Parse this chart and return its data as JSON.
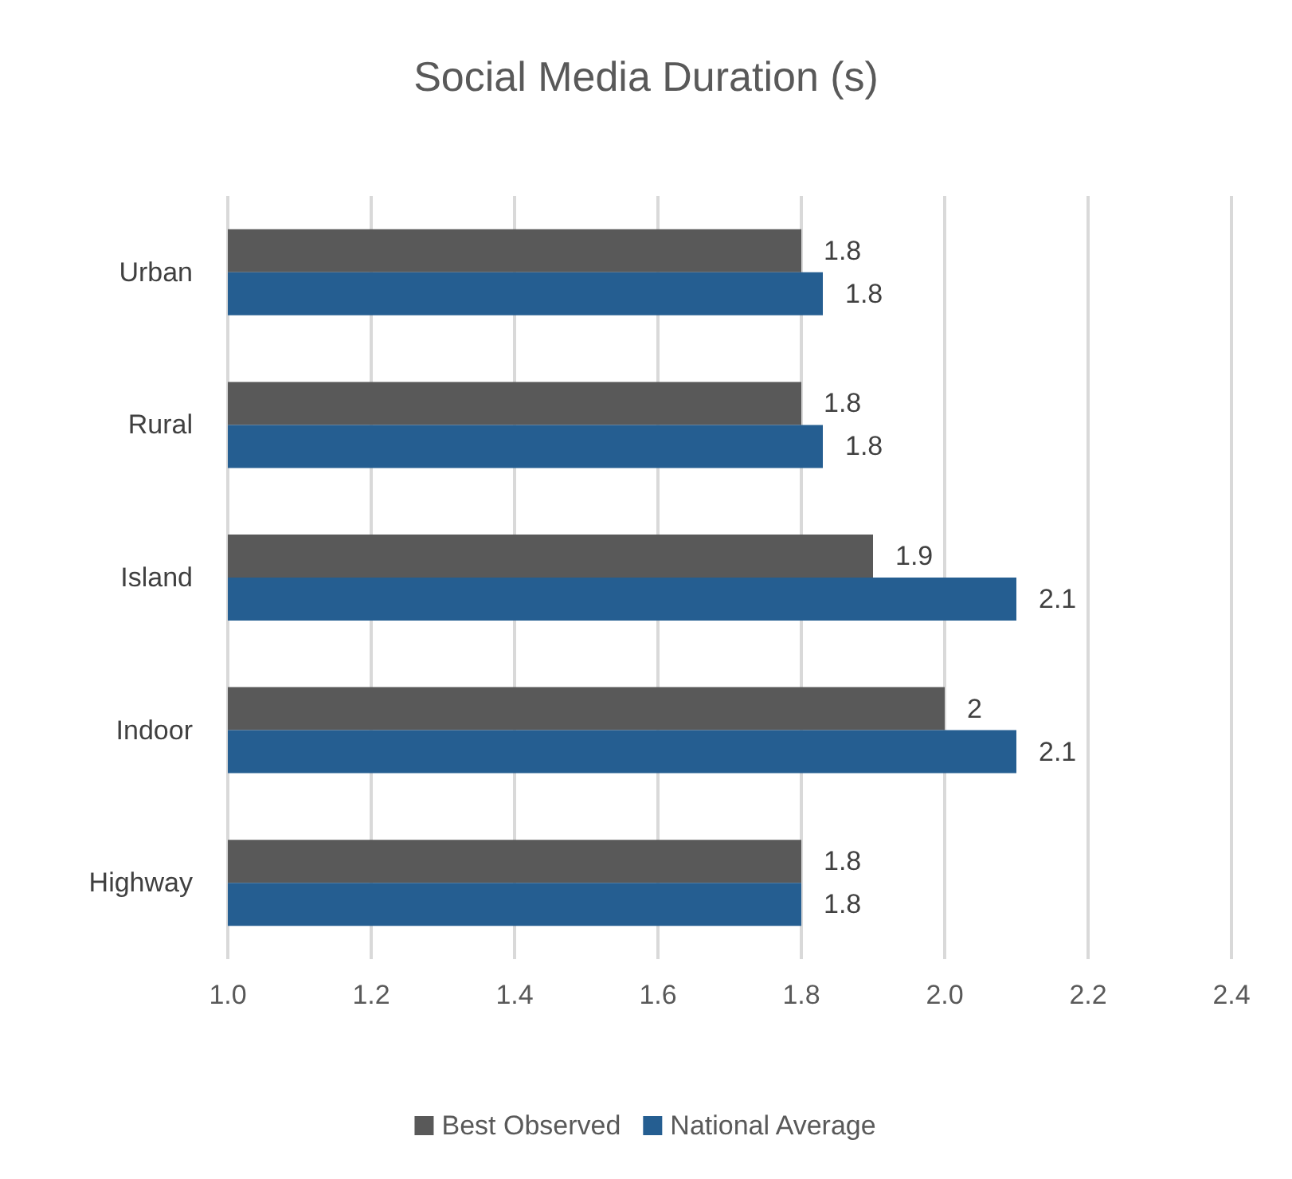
{
  "chart_data": {
    "type": "bar",
    "orientation": "horizontal",
    "title": "Social Media Duration (s)",
    "categories": [
      "Urban",
      "Rural",
      "Island",
      "Indoor",
      "Highway"
    ],
    "series": [
      {
        "name": "Best Observed",
        "color": "#595959",
        "values": [
          1.8,
          1.8,
          1.9,
          2,
          1.8
        ],
        "value_labels": [
          "1.8",
          "1.8",
          "1.9",
          "2",
          "1.8"
        ]
      },
      {
        "name": "National Average",
        "color": "#255e91",
        "values": [
          1.83,
          1.83,
          2.1,
          2.1,
          1.8
        ],
        "value_labels": [
          "1.8",
          "1.8",
          "2.1",
          "2.1",
          "1.8"
        ]
      }
    ],
    "xlim": [
      1.0,
      2.4
    ],
    "xticks": [
      {
        "value": 1.0,
        "label": "1.0"
      },
      {
        "value": 1.2,
        "label": "1.2"
      },
      {
        "value": 1.4,
        "label": "1.4"
      },
      {
        "value": 1.6,
        "label": "1.6"
      },
      {
        "value": 1.8,
        "label": "1.8"
      },
      {
        "value": 2.0,
        "label": "2.0"
      },
      {
        "value": 2.2,
        "label": "2.2"
      },
      {
        "value": 2.4,
        "label": "2.4"
      }
    ],
    "grid": "x",
    "legend": "bottom"
  }
}
